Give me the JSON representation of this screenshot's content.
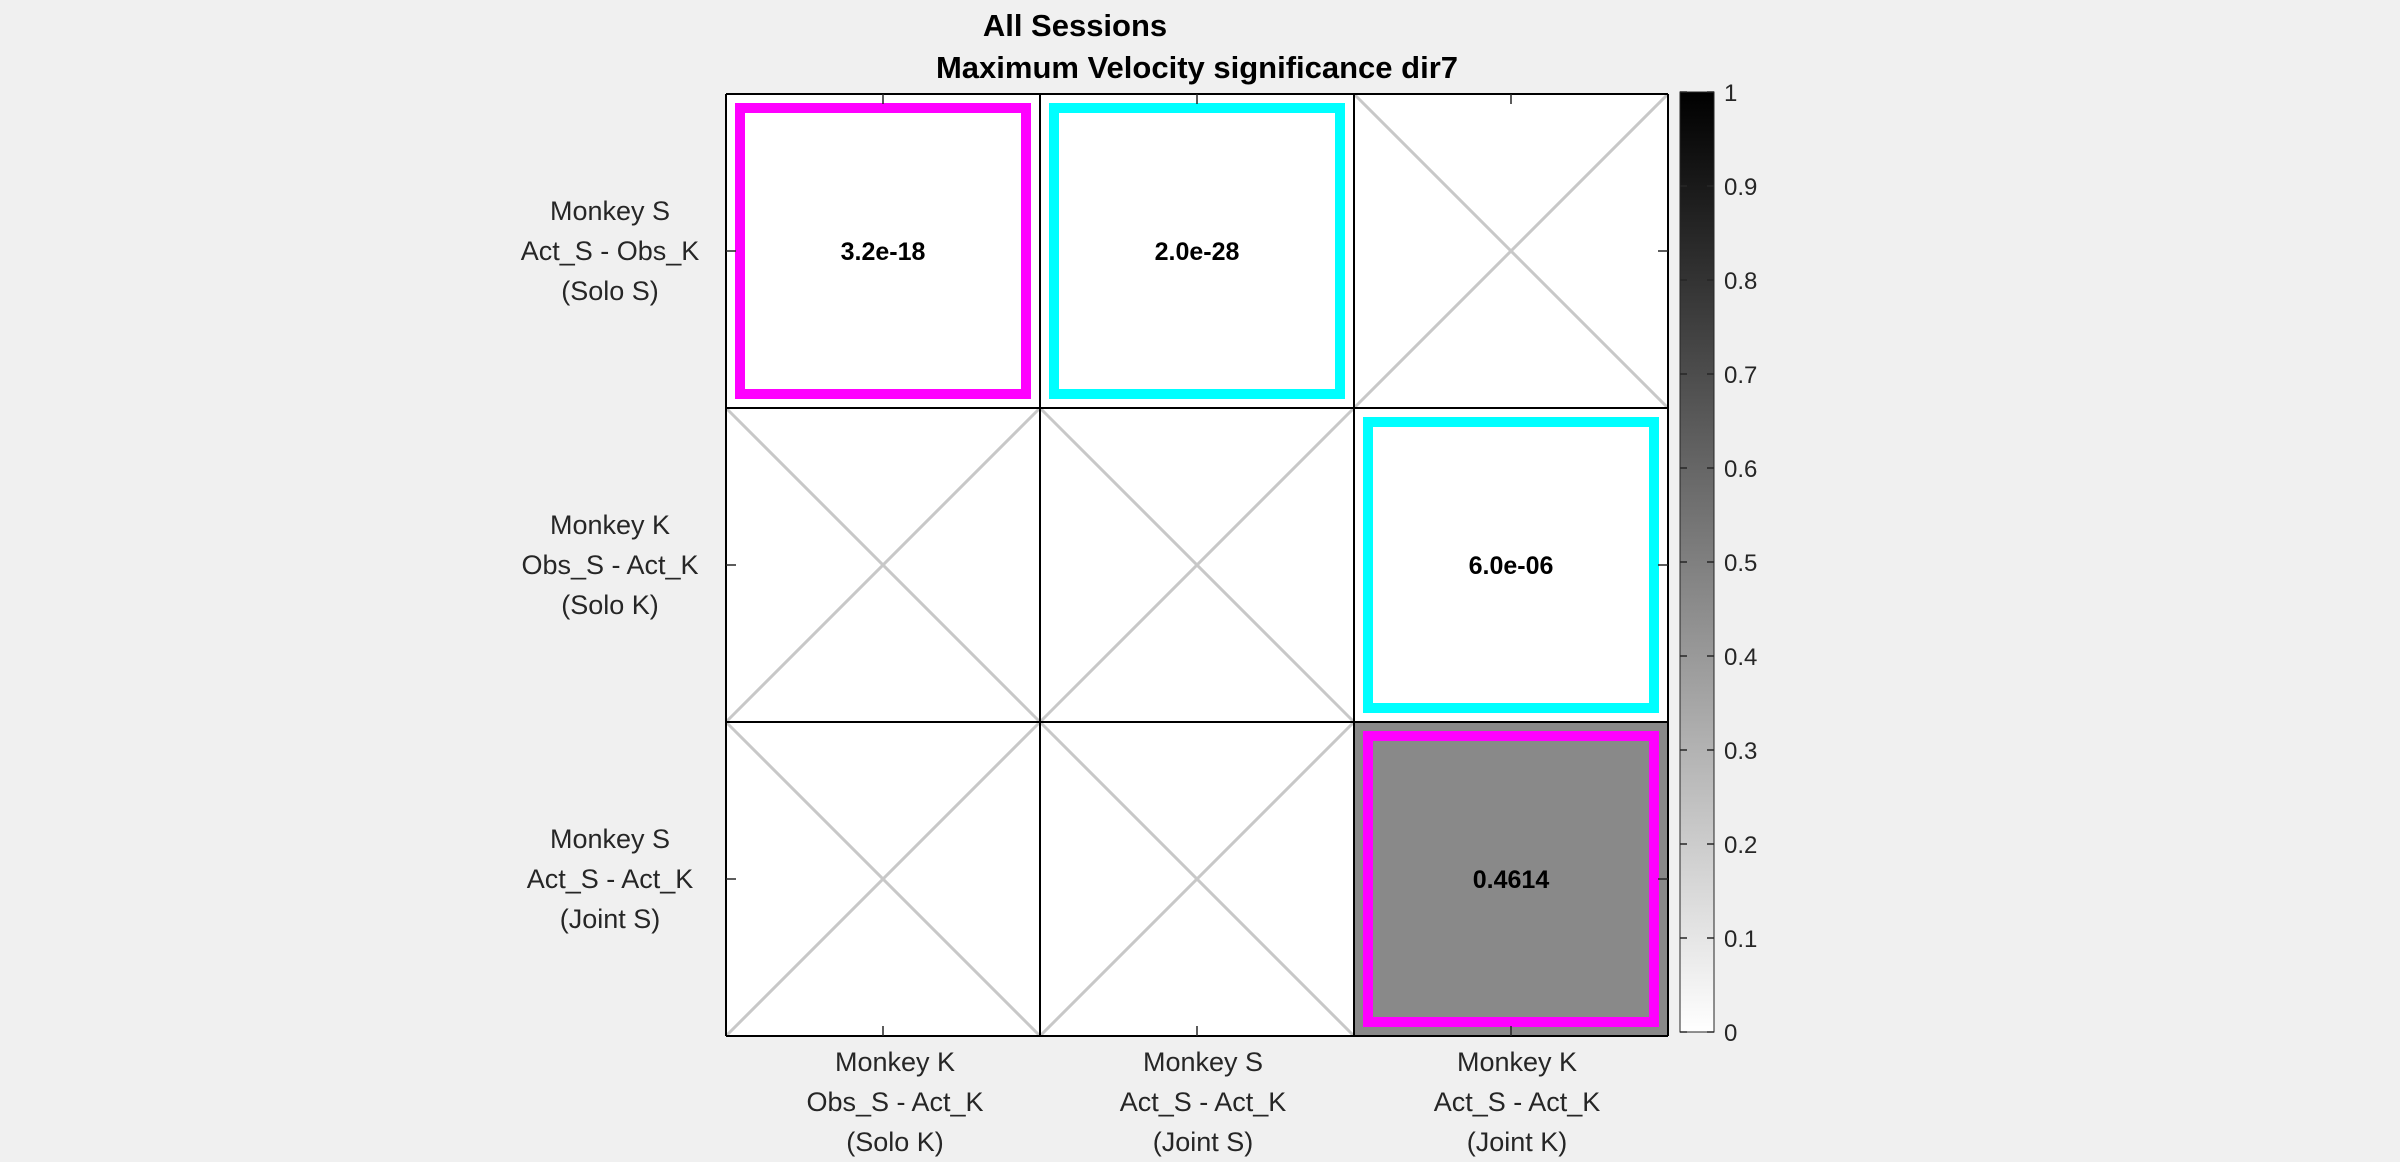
{
  "figure": {
    "suptitle": "All Sessions"
  },
  "chart_data": {
    "type": "heatmap",
    "title": "Maximum Velocity significance dir7",
    "colormap": "gray-reversed",
    "clim": [
      0,
      1
    ],
    "x_categories": [
      [
        "Monkey K",
        "Obs_S - Act_K",
        "(Solo K)"
      ],
      [
        "Monkey S",
        "Act_S - Act_K",
        "(Joint S)"
      ],
      [
        "Monkey K",
        "Act_S - Act_K",
        "(Joint K)"
      ]
    ],
    "y_categories": [
      [
        "Monkey S",
        "Act_S - Obs_K",
        "(Solo S)"
      ],
      [
        "Monkey K",
        "Obs_S - Act_K",
        "(Solo K)"
      ],
      [
        "Monkey S",
        "Act_S - Act_K",
        "(Joint S)"
      ]
    ],
    "cells": [
      {
        "row": 0,
        "col": 0,
        "value": 3.2e-18,
        "label": "3.2e-18",
        "highlight": "magenta"
      },
      {
        "row": 0,
        "col": 1,
        "value": 2e-28,
        "label": "2.0e-28",
        "highlight": "cyan"
      },
      {
        "row": 0,
        "col": 2,
        "value": null,
        "label": "",
        "highlight": "none"
      },
      {
        "row": 1,
        "col": 0,
        "value": null,
        "label": "",
        "highlight": "none"
      },
      {
        "row": 1,
        "col": 1,
        "value": null,
        "label": "",
        "highlight": "none"
      },
      {
        "row": 1,
        "col": 2,
        "value": 6e-06,
        "label": "6.0e-06",
        "highlight": "cyan"
      },
      {
        "row": 2,
        "col": 0,
        "value": null,
        "label": "",
        "highlight": "none"
      },
      {
        "row": 2,
        "col": 1,
        "value": null,
        "label": "",
        "highlight": "none"
      },
      {
        "row": 2,
        "col": 2,
        "value": 0.4614,
        "label": "0.4614",
        "highlight": "magenta"
      }
    ],
    "colorbar_ticks": [
      "0",
      "0.1",
      "0.2",
      "0.3",
      "0.4",
      "0.5",
      "0.6",
      "0.7",
      "0.8",
      "0.9",
      "1"
    ],
    "colors": {
      "magenta": "#ff00ff",
      "cyan": "#00ffff",
      "missing_cross": "#c8c8c8",
      "background": "#f0f0f0"
    }
  }
}
